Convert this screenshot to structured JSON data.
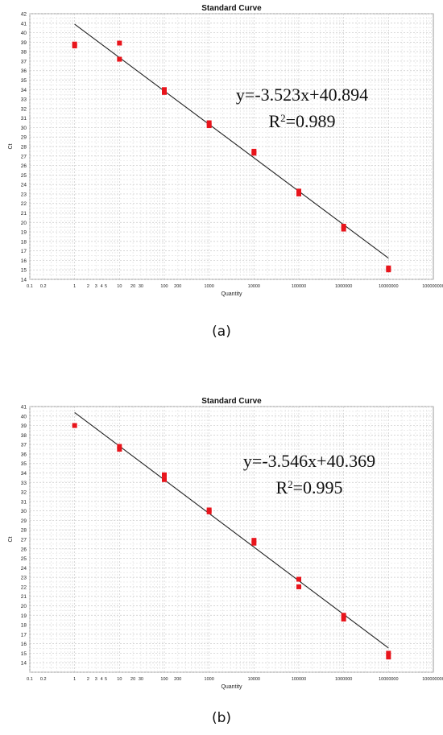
{
  "panel_labels": [
    "(a)",
    "(b)"
  ],
  "chart_data": [
    {
      "type": "scatter",
      "title": "Standard Curve",
      "xlabel": "Quantity",
      "ylabel": "Ct",
      "x_scale": "log",
      "xlim": [
        0.1,
        100000000
      ],
      "ylim": [
        14,
        42
      ],
      "x_ticks": [
        0.1,
        0.2,
        1,
        2,
        3,
        4,
        5,
        10,
        20,
        30,
        100,
        200,
        1000,
        10000,
        100000,
        1000000,
        10000000,
        100000000
      ],
      "x_tick_labels": [
        "0.1",
        "0.2",
        "1",
        "2",
        "3",
        "4",
        "5",
        "10",
        "20",
        "30",
        "100",
        "200",
        "1000",
        "10000",
        "100000",
        "1000000",
        "10000000",
        "100000000"
      ],
      "y_ticks": [
        14,
        15,
        16,
        17,
        18,
        19,
        20,
        21,
        22,
        23,
        24,
        25,
        26,
        27,
        28,
        29,
        30,
        31,
        32,
        33,
        34,
        35,
        36,
        37,
        38,
        39,
        40,
        41,
        42
      ],
      "grid": true,
      "points": [
        {
          "x": 1,
          "y": 38.8
        },
        {
          "x": 1,
          "y": 38.6
        },
        {
          "x": 10,
          "y": 38.9
        },
        {
          "x": 10,
          "y": 37.2
        },
        {
          "x": 100,
          "y": 34.0
        },
        {
          "x": 100,
          "y": 33.7
        },
        {
          "x": 1000,
          "y": 30.5
        },
        {
          "x": 1000,
          "y": 30.2
        },
        {
          "x": 10000,
          "y": 27.5
        },
        {
          "x": 10000,
          "y": 27.3
        },
        {
          "x": 100000,
          "y": 23.3
        },
        {
          "x": 100000,
          "y": 23.0
        },
        {
          "x": 1000000,
          "y": 19.6
        },
        {
          "x": 1000000,
          "y": 19.3
        },
        {
          "x": 10000000,
          "y": 15.2
        },
        {
          "x": 10000000,
          "y": 15.0
        }
      ],
      "fit_line": {
        "slope": -3.523,
        "intercept": 40.894,
        "x_range": [
          1,
          10000000
        ],
        "color": "#222222"
      },
      "point_color": "#e8141b",
      "annotation": {
        "equation": "y=-3.523x+40.894",
        "r2_prefix": "R",
        "r2_sup": "2",
        "r2_value": "=0.989"
      }
    },
    {
      "type": "scatter",
      "title": "Standard Curve",
      "xlabel": "Quantity",
      "ylabel": "Ct",
      "x_scale": "log",
      "xlim": [
        0.1,
        100000000
      ],
      "ylim": [
        13,
        41
      ],
      "x_ticks": [
        0.1,
        0.2,
        1,
        2,
        3,
        4,
        5,
        10,
        20,
        30,
        100,
        200,
        1000,
        10000,
        100000,
        1000000,
        10000000,
        100000000
      ],
      "x_tick_labels": [
        "0.1",
        "0.2",
        "1",
        "2",
        "3",
        "4",
        "5",
        "10",
        "20",
        "30",
        "100",
        "200",
        "1000",
        "10000",
        "100000",
        "1000000",
        "10000000",
        "100000000"
      ],
      "y_ticks": [
        14,
        15,
        16,
        17,
        18,
        19,
        20,
        21,
        22,
        23,
        24,
        25,
        26,
        27,
        28,
        29,
        30,
        31,
        32,
        33,
        34,
        35,
        36,
        37,
        38,
        39,
        40,
        41
      ],
      "grid": true,
      "points": [
        {
          "x": 1,
          "y": 39.0
        },
        {
          "x": 10,
          "y": 36.8
        },
        {
          "x": 10,
          "y": 36.5
        },
        {
          "x": 100,
          "y": 33.8
        },
        {
          "x": 100,
          "y": 33.3
        },
        {
          "x": 1000,
          "y": 30.1
        },
        {
          "x": 1000,
          "y": 29.9
        },
        {
          "x": 10000,
          "y": 26.9
        },
        {
          "x": 10000,
          "y": 26.6
        },
        {
          "x": 100000,
          "y": 22.8
        },
        {
          "x": 100000,
          "y": 22.0
        },
        {
          "x": 1000000,
          "y": 19.0
        },
        {
          "x": 1000000,
          "y": 18.6
        },
        {
          "x": 10000000,
          "y": 15.0
        },
        {
          "x": 10000000,
          "y": 14.6
        }
      ],
      "fit_line": {
        "slope": -3.546,
        "intercept": 40.369,
        "x_range": [
          1,
          10000000
        ],
        "color": "#222222"
      },
      "point_color": "#e8141b",
      "annotation": {
        "equation": "y=-3.546x+40.369",
        "r2_prefix": "R",
        "r2_sup": "2",
        "r2_value": "=0.995"
      }
    }
  ]
}
